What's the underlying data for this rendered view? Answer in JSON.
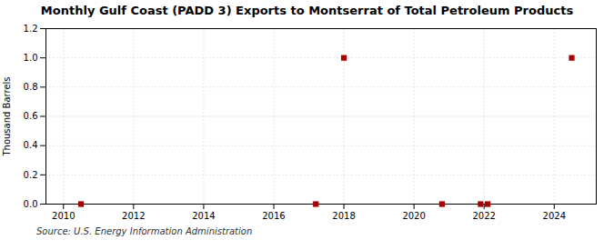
{
  "chart_data": {
    "type": "scatter",
    "title": "Monthly Gulf Coast (PADD 3) Exports to Montserrat of Total Petroleum Products",
    "ylabel": "Thousand Barrels",
    "source": "Source: U.S. Energy Information Administration",
    "x": [
      2010.5,
      2017.2,
      2018.0,
      2020.8,
      2021.9,
      2022.1,
      2024.5
    ],
    "values": [
      0.0,
      0.0,
      1.0,
      0.0,
      0.0,
      0.0,
      1.0
    ],
    "color": "#aa0000",
    "marker": "square",
    "xlim": [
      2009.5,
      2025.2
    ],
    "xticks": [
      2010,
      2012,
      2014,
      2016,
      2018,
      2020,
      2022,
      2024
    ],
    "ylim": [
      0.0,
      1.2
    ],
    "yticks": [
      {
        "value": 0.0,
        "label": "0.0"
      },
      0.2,
      0.4,
      0.6,
      0.8,
      {
        "value": 1.0,
        "label": "1.0"
      },
      1.2
    ],
    "grid": true
  }
}
